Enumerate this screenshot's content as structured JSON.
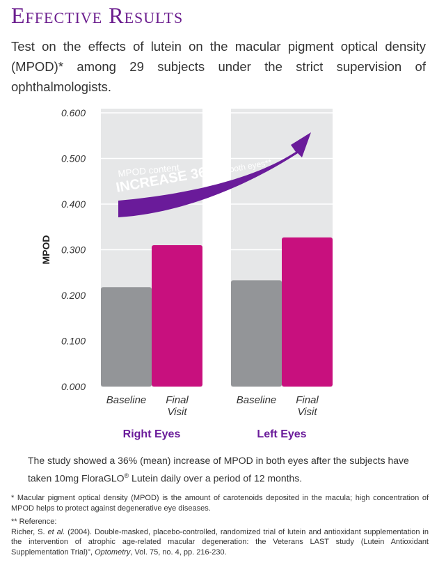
{
  "page": {
    "title": "Effective Results",
    "intro": "Test on the effects of lutein on the macular pigment optical density (MPOD)* among 29 subjects under the strict supervision of ophthalmologists.",
    "summary_pre": "The study showed a 36% (mean) increase of MPOD in both eyes after the subjects have taken 10mg FloraGLO",
    "summary_sup": "®",
    "summary_post": " Lutein daily over a period of 12 months.",
    "footnote1": "* Macular pigment optical density (MPOD) is the amount of carotenoids deposited in the macula; high concentration of MPOD helps to protect against degenerative eye diseases.",
    "ref_label": "** Reference:",
    "ref_text_1": "Richer, S. ",
    "ref_italic_1": "et al.",
    "ref_text_2": " (2004). Double-masked, placebo-controlled, randomized trial of lutein and antioxidant supplementation in the intervention of atrophic age-related macular degeneration: the Veterans LAST study (Lutein Antioxidant Supplementation Trial)\", ",
    "ref_italic_2": "Optometry",
    "ref_text_3": ", Vol. 75, no. 4, pp. 216-230."
  },
  "chart_data": {
    "type": "bar",
    "ylabel": "MPOD",
    "ylim": [
      0,
      0.6
    ],
    "yticks": [
      "0.000",
      "0.100",
      "0.200",
      "0.300",
      "0.400",
      "0.500",
      "0.600"
    ],
    "groups": [
      "Right Eyes",
      "Left Eyes"
    ],
    "categories": [
      "Baseline",
      "Final Visit"
    ],
    "category_lines": [
      [
        "Baseline"
      ],
      [
        "Final",
        "Visit"
      ]
    ],
    "series": [
      {
        "name": "Baseline",
        "color": "#939598",
        "values": [
          0.218,
          0.233
        ]
      },
      {
        "name": "Final Visit",
        "color": "#c8107e",
        "values": [
          0.31,
          0.327
        ]
      }
    ],
    "annotation": {
      "line1": "MPOD content",
      "bold": "INCREASE 36%",
      "tail": " in both eyes**"
    },
    "colors": {
      "arrow": "#6a1b9a",
      "panel": "#e6e7e8",
      "group_label": "#6a1b9a",
      "accent": "#6b1d8e"
    }
  }
}
